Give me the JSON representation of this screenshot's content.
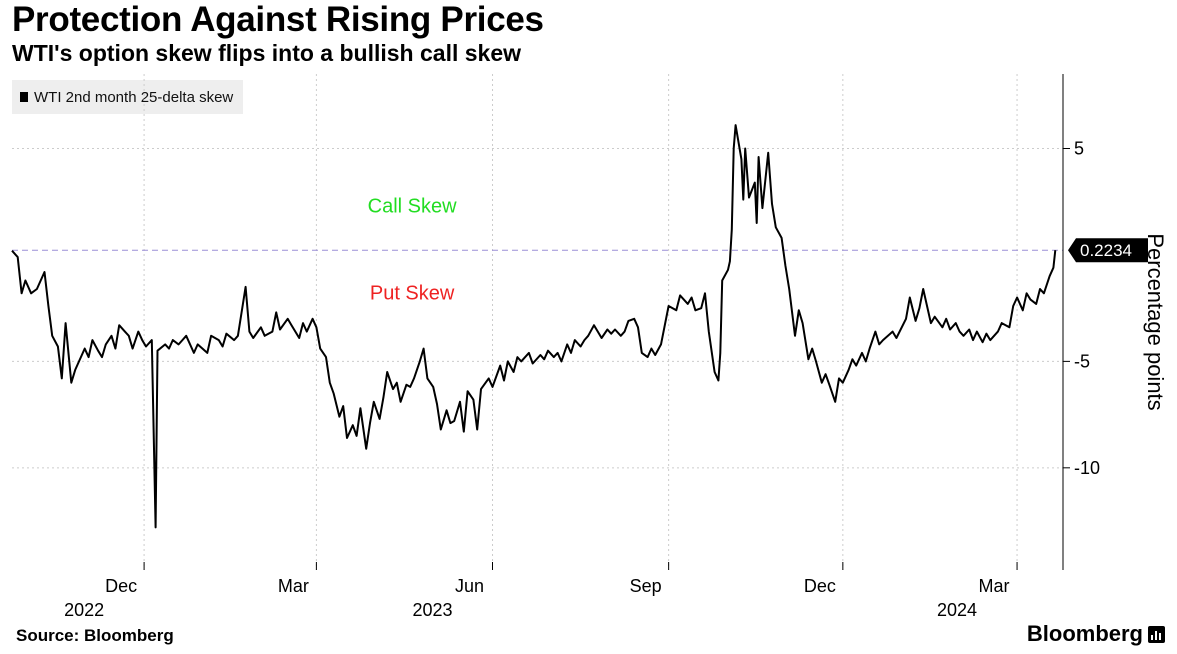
{
  "header": {
    "title": "Protection Against Rising Prices",
    "subtitle": "WTI's option skew flips into a bullish call skew"
  },
  "legend": {
    "label": "WTI 2nd month 25-delta skew"
  },
  "footer": {
    "source": "Source: Bloomberg",
    "brand": "Bloomberg"
  },
  "colors": {
    "line": "#000000",
    "grid": "#cccccc",
    "zero_line": "#9b8fd6",
    "call": "#22dd22",
    "put": "#ee2222",
    "last_box": "#000000"
  },
  "chart_data": {
    "type": "line",
    "title": "Protection Against Rising Prices",
    "subtitle": "WTI's option skew flips into a bullish call skew",
    "ylabel": "Percentage points",
    "ylim": [
      -14.8,
      8.5
    ],
    "y_ticks": [
      5,
      -5,
      -10
    ],
    "y_tick_labels": [
      "5",
      "-5",
      "-10"
    ],
    "x_range": [
      "2022-09-23",
      "2024-03-25"
    ],
    "x_ticks": [
      {
        "label": "Dec",
        "year": "2022",
        "date": "2022-12-01"
      },
      {
        "label": "Mar",
        "year": "",
        "date": "2023-03-01"
      },
      {
        "label": "Jun",
        "year": "2023",
        "date": "2023-06-01"
      },
      {
        "label": "Sep",
        "year": "",
        "date": "2023-09-01"
      },
      {
        "label": "Dec",
        "year": "",
        "date": "2023-12-01"
      },
      {
        "label": "Mar",
        "year": "2024",
        "date": "2024-03-01"
      }
    ],
    "reference_line": {
      "y": 0.2234
    },
    "annotations": [
      {
        "text": "Call Skew",
        "color": "#22dd22",
        "x": "2023-04-20",
        "y": 2.0
      },
      {
        "text": "Put Skew",
        "color": "#ee2222",
        "x": "2023-04-20",
        "y": -2.1
      }
    ],
    "last_value": {
      "label": "0.2234",
      "value": 0.2234
    },
    "series": [
      {
        "name": "WTI 2nd month 25-delta skew",
        "points": [
          [
            "2022-09-23",
            0.2
          ],
          [
            "2022-09-26",
            -0.1
          ],
          [
            "2022-09-28",
            -1.8
          ],
          [
            "2022-09-30",
            -1.2
          ],
          [
            "2022-10-03",
            -1.8
          ],
          [
            "2022-10-06",
            -1.6
          ],
          [
            "2022-10-10",
            -0.8
          ],
          [
            "2022-10-12",
            -2.4
          ],
          [
            "2022-10-14",
            -3.8
          ],
          [
            "2022-10-17",
            -4.3
          ],
          [
            "2022-10-19",
            -5.8
          ],
          [
            "2022-10-21",
            -3.2
          ],
          [
            "2022-10-24",
            -6.0
          ],
          [
            "2022-10-26",
            -5.4
          ],
          [
            "2022-10-28",
            -5.0
          ],
          [
            "2022-10-31",
            -4.4
          ],
          [
            "2022-11-02",
            -4.8
          ],
          [
            "2022-11-04",
            -4.0
          ],
          [
            "2022-11-07",
            -4.5
          ],
          [
            "2022-11-09",
            -4.8
          ],
          [
            "2022-11-11",
            -4.2
          ],
          [
            "2022-11-14",
            -3.8
          ],
          [
            "2022-11-16",
            -4.4
          ],
          [
            "2022-11-18",
            -3.3
          ],
          [
            "2022-11-21",
            -3.6
          ],
          [
            "2022-11-23",
            -3.8
          ],
          [
            "2022-11-25",
            -4.4
          ],
          [
            "2022-11-28",
            -3.6
          ],
          [
            "2022-11-30",
            -4.0
          ],
          [
            "2022-12-02",
            -4.3
          ],
          [
            "2022-12-05",
            -4.0
          ],
          [
            "2022-12-07",
            -12.8
          ],
          [
            "2022-12-08",
            -4.5
          ],
          [
            "2022-12-12",
            -4.2
          ],
          [
            "2022-12-14",
            -4.4
          ],
          [
            "2022-12-16",
            -4.0
          ],
          [
            "2022-12-19",
            -4.2
          ],
          [
            "2022-12-21",
            -4.0
          ],
          [
            "2022-12-23",
            -3.8
          ],
          [
            "2022-12-27",
            -4.6
          ],
          [
            "2022-12-29",
            -4.2
          ],
          [
            "2023-01-03",
            -4.6
          ],
          [
            "2023-01-05",
            -3.8
          ],
          [
            "2023-01-09",
            -4.0
          ],
          [
            "2023-01-11",
            -4.3
          ],
          [
            "2023-01-13",
            -3.7
          ],
          [
            "2023-01-17",
            -4.0
          ],
          [
            "2023-01-19",
            -3.8
          ],
          [
            "2023-01-23",
            -1.5
          ],
          [
            "2023-01-25",
            -3.6
          ],
          [
            "2023-01-27",
            -3.9
          ],
          [
            "2023-01-31",
            -3.4
          ],
          [
            "2023-02-02",
            -3.8
          ],
          [
            "2023-02-06",
            -3.6
          ],
          [
            "2023-02-08",
            -2.7
          ],
          [
            "2023-02-10",
            -3.5
          ],
          [
            "2023-02-14",
            -3.0
          ],
          [
            "2023-02-16",
            -3.3
          ],
          [
            "2023-02-20",
            -3.9
          ],
          [
            "2023-02-22",
            -3.2
          ],
          [
            "2023-02-24",
            -3.6
          ],
          [
            "2023-02-27",
            -3.0
          ],
          [
            "2023-03-01",
            -3.4
          ],
          [
            "2023-03-03",
            -4.4
          ],
          [
            "2023-03-06",
            -4.8
          ],
          [
            "2023-03-08",
            -6.0
          ],
          [
            "2023-03-10",
            -6.5
          ],
          [
            "2023-03-13",
            -7.6
          ],
          [
            "2023-03-15",
            -7.1
          ],
          [
            "2023-03-17",
            -8.6
          ],
          [
            "2023-03-20",
            -8.0
          ],
          [
            "2023-03-22",
            -8.5
          ],
          [
            "2023-03-24",
            -7.2
          ],
          [
            "2023-03-27",
            -9.1
          ],
          [
            "2023-03-29",
            -7.9
          ],
          [
            "2023-03-31",
            -6.9
          ],
          [
            "2023-04-03",
            -7.7
          ],
          [
            "2023-04-05",
            -6.7
          ],
          [
            "2023-04-07",
            -5.5
          ],
          [
            "2023-04-10",
            -6.3
          ],
          [
            "2023-04-12",
            -6.0
          ],
          [
            "2023-04-14",
            -6.9
          ],
          [
            "2023-04-17",
            -6.1
          ],
          [
            "2023-04-19",
            -6.2
          ],
          [
            "2023-04-21",
            -5.8
          ],
          [
            "2023-04-24",
            -5.0
          ],
          [
            "2023-04-26",
            -4.4
          ],
          [
            "2023-04-28",
            -5.8
          ],
          [
            "2023-05-01",
            -6.2
          ],
          [
            "2023-05-03",
            -7.0
          ],
          [
            "2023-05-05",
            -8.2
          ],
          [
            "2023-05-08",
            -7.3
          ],
          [
            "2023-05-10",
            -7.9
          ],
          [
            "2023-05-12",
            -7.8
          ],
          [
            "2023-05-15",
            -6.9
          ],
          [
            "2023-05-17",
            -8.3
          ],
          [
            "2023-05-19",
            -6.4
          ],
          [
            "2023-05-22",
            -6.8
          ],
          [
            "2023-05-24",
            -8.2
          ],
          [
            "2023-05-26",
            -6.3
          ],
          [
            "2023-05-30",
            -5.8
          ],
          [
            "2023-06-01",
            -6.2
          ],
          [
            "2023-06-05",
            -5.2
          ],
          [
            "2023-06-07",
            -5.9
          ],
          [
            "2023-06-09",
            -5.0
          ],
          [
            "2023-06-12",
            -5.5
          ],
          [
            "2023-06-14",
            -4.8
          ],
          [
            "2023-06-16",
            -5.0
          ],
          [
            "2023-06-20",
            -4.6
          ],
          [
            "2023-06-22",
            -5.1
          ],
          [
            "2023-06-26",
            -4.7
          ],
          [
            "2023-06-28",
            -4.9
          ],
          [
            "2023-06-30",
            -4.5
          ],
          [
            "2023-07-03",
            -4.8
          ],
          [
            "2023-07-05",
            -4.6
          ],
          [
            "2023-07-07",
            -5.0
          ],
          [
            "2023-07-10",
            -4.2
          ],
          [
            "2023-07-12",
            -4.6
          ],
          [
            "2023-07-14",
            -4.0
          ],
          [
            "2023-07-17",
            -4.3
          ],
          [
            "2023-07-19",
            -4.0
          ],
          [
            "2023-07-21",
            -3.8
          ],
          [
            "2023-07-24",
            -3.3
          ],
          [
            "2023-07-26",
            -3.6
          ],
          [
            "2023-07-28",
            -3.9
          ],
          [
            "2023-07-31",
            -3.5
          ],
          [
            "2023-08-02",
            -3.7
          ],
          [
            "2023-08-04",
            -3.5
          ],
          [
            "2023-08-07",
            -3.8
          ],
          [
            "2023-08-09",
            -3.6
          ],
          [
            "2023-08-11",
            -3.1
          ],
          [
            "2023-08-14",
            -3.0
          ],
          [
            "2023-08-16",
            -3.4
          ],
          [
            "2023-08-18",
            -4.6
          ],
          [
            "2023-08-21",
            -4.8
          ],
          [
            "2023-08-23",
            -4.4
          ],
          [
            "2023-08-25",
            -4.7
          ],
          [
            "2023-08-28",
            -4.2
          ],
          [
            "2023-08-30",
            -3.3
          ],
          [
            "2023-09-01",
            -2.4
          ],
          [
            "2023-09-05",
            -2.6
          ],
          [
            "2023-09-07",
            -1.9
          ],
          [
            "2023-09-11",
            -2.3
          ],
          [
            "2023-09-13",
            -2.0
          ],
          [
            "2023-09-15",
            -2.6
          ],
          [
            "2023-09-18",
            -2.5
          ],
          [
            "2023-09-20",
            -1.8
          ],
          [
            "2023-09-22",
            -3.6
          ],
          [
            "2023-09-25",
            -5.5
          ],
          [
            "2023-09-27",
            -5.9
          ],
          [
            "2023-09-28",
            -4.6
          ],
          [
            "2023-09-29",
            -1.2
          ],
          [
            "2023-10-02",
            -0.7
          ],
          [
            "2023-10-03",
            -0.3
          ],
          [
            "2023-10-04",
            1.2
          ],
          [
            "2023-10-05",
            5.0
          ],
          [
            "2023-10-06",
            6.1
          ],
          [
            "2023-10-09",
            4.5
          ],
          [
            "2023-10-10",
            2.6
          ],
          [
            "2023-10-11",
            5.0
          ],
          [
            "2023-10-13",
            2.7
          ],
          [
            "2023-10-16",
            3.4
          ],
          [
            "2023-10-17",
            1.5
          ],
          [
            "2023-10-18",
            4.6
          ],
          [
            "2023-10-20",
            2.2
          ],
          [
            "2023-10-23",
            4.8
          ],
          [
            "2023-10-25",
            2.4
          ],
          [
            "2023-10-27",
            1.3
          ],
          [
            "2023-10-30",
            0.8
          ],
          [
            "2023-11-01",
            -0.5
          ],
          [
            "2023-11-03",
            -1.6
          ],
          [
            "2023-11-06",
            -3.8
          ],
          [
            "2023-11-08",
            -2.6
          ],
          [
            "2023-11-10",
            -3.2
          ],
          [
            "2023-11-13",
            -4.9
          ],
          [
            "2023-11-15",
            -4.4
          ],
          [
            "2023-11-17",
            -5.0
          ],
          [
            "2023-11-20",
            -6.0
          ],
          [
            "2023-11-22",
            -5.6
          ],
          [
            "2023-11-24",
            -6.1
          ],
          [
            "2023-11-27",
            -6.9
          ],
          [
            "2023-11-29",
            -5.8
          ],
          [
            "2023-12-01",
            -6.0
          ],
          [
            "2023-12-04",
            -5.4
          ],
          [
            "2023-12-06",
            -4.9
          ],
          [
            "2023-12-08",
            -5.2
          ],
          [
            "2023-12-11",
            -4.6
          ],
          [
            "2023-12-13",
            -5.0
          ],
          [
            "2023-12-15",
            -4.4
          ],
          [
            "2023-12-18",
            -3.6
          ],
          [
            "2023-12-20",
            -4.2
          ],
          [
            "2023-12-22",
            -4.0
          ],
          [
            "2023-12-27",
            -3.6
          ],
          [
            "2023-12-29",
            -3.9
          ],
          [
            "2024-01-03",
            -3.0
          ],
          [
            "2024-01-05",
            -2.0
          ],
          [
            "2024-01-08",
            -3.1
          ],
          [
            "2024-01-10",
            -2.5
          ],
          [
            "2024-01-12",
            -1.6
          ],
          [
            "2024-01-16",
            -3.2
          ],
          [
            "2024-01-18",
            -2.9
          ],
          [
            "2024-01-22",
            -3.4
          ],
          [
            "2024-01-24",
            -3.0
          ],
          [
            "2024-01-26",
            -3.5
          ],
          [
            "2024-01-29",
            -3.2
          ],
          [
            "2024-01-31",
            -3.6
          ],
          [
            "2024-02-02",
            -3.8
          ],
          [
            "2024-02-05",
            -3.5
          ],
          [
            "2024-02-07",
            -4.0
          ],
          [
            "2024-02-09",
            -3.6
          ],
          [
            "2024-02-12",
            -4.1
          ],
          [
            "2024-02-14",
            -3.7
          ],
          [
            "2024-02-16",
            -4.0
          ],
          [
            "2024-02-20",
            -3.6
          ],
          [
            "2024-02-22",
            -3.2
          ],
          [
            "2024-02-26",
            -3.4
          ],
          [
            "2024-02-28",
            -2.4
          ],
          [
            "2024-03-01",
            -2.0
          ],
          [
            "2024-03-04",
            -2.6
          ],
          [
            "2024-03-06",
            -1.8
          ],
          [
            "2024-03-08",
            -2.1
          ],
          [
            "2024-03-11",
            -2.3
          ],
          [
            "2024-03-13",
            -1.6
          ],
          [
            "2024-03-15",
            -1.8
          ],
          [
            "2024-03-18",
            -1.0
          ],
          [
            "2024-03-20",
            -0.6
          ],
          [
            "2024-03-21",
            0.2234
          ]
        ]
      }
    ]
  }
}
